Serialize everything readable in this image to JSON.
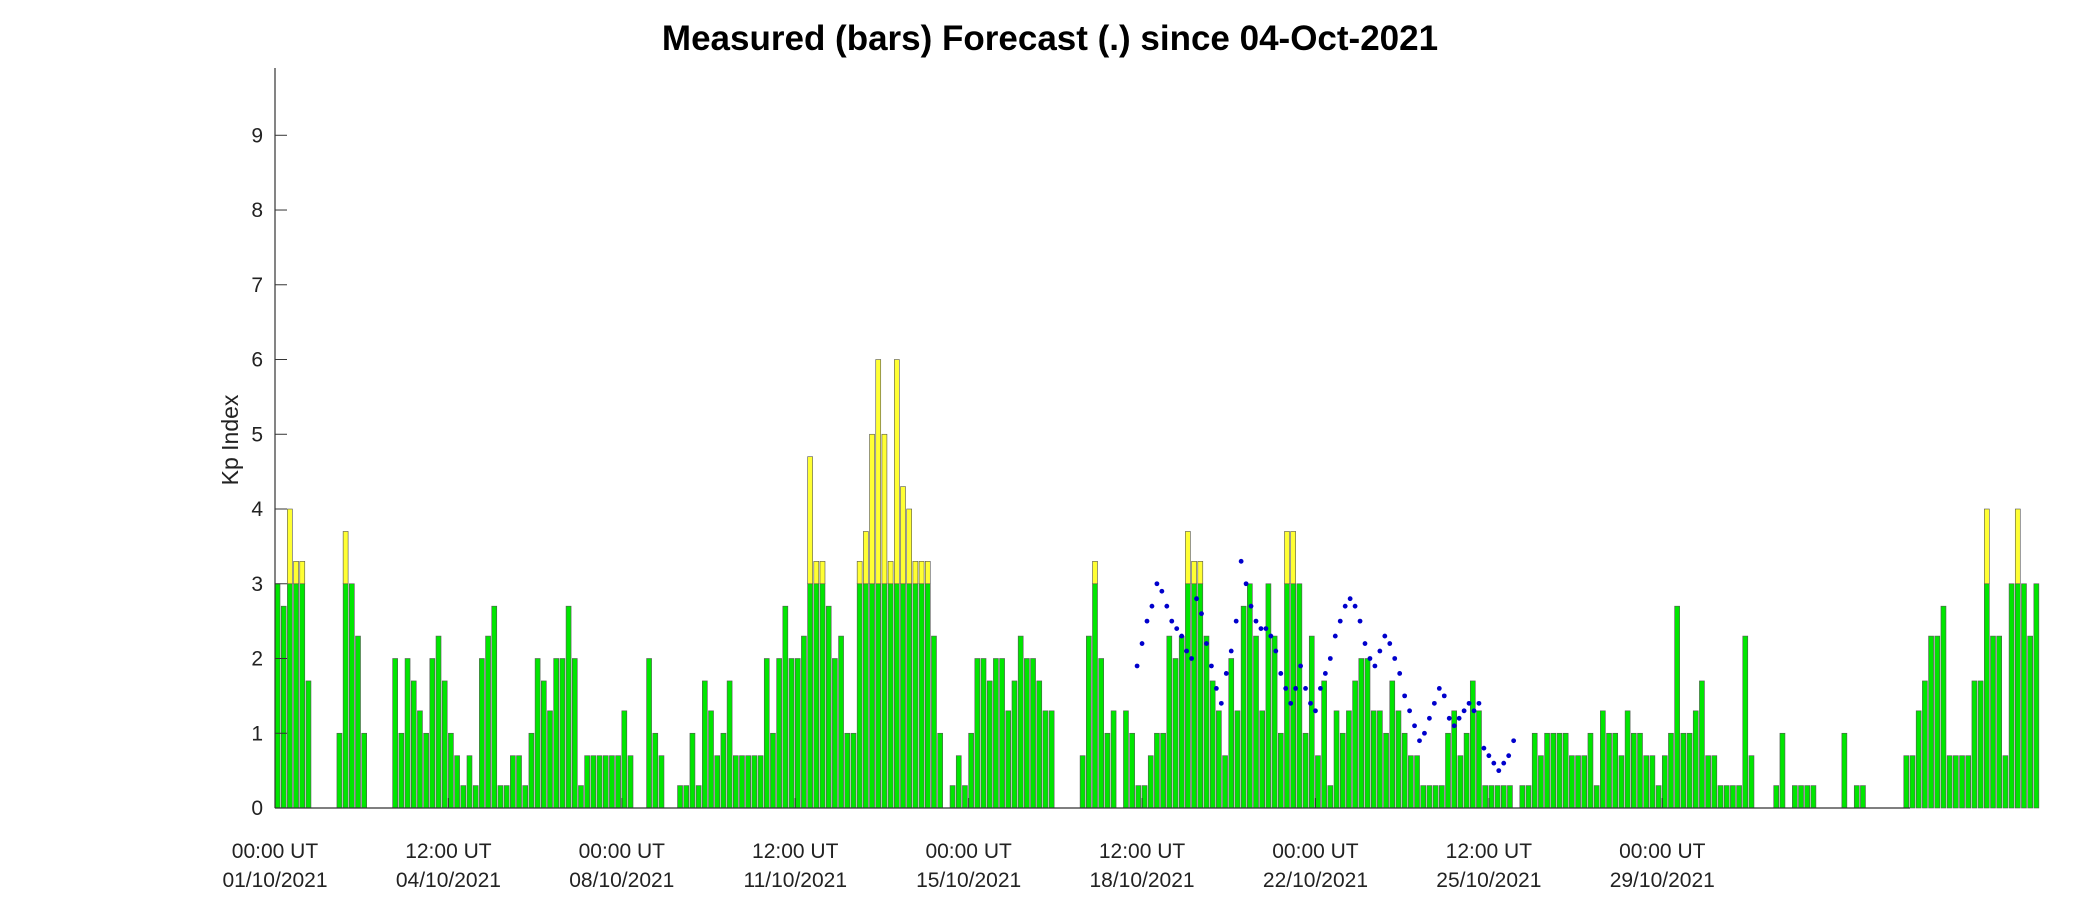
{
  "chart_data": {
    "type": "bar",
    "title": "Measured (bars) Forecast (.) since 04-Oct-2021",
    "ylabel": "Kp Index",
    "xlabel": "",
    "ylim": [
      0,
      9.9
    ],
    "yticks": [
      0,
      1,
      2,
      3,
      4,
      5,
      6,
      7,
      8,
      9
    ],
    "xticks": [
      {
        "line1": "00:00 UT",
        "line2": "01/10/2021"
      },
      {
        "line1": "12:00 UT",
        "line2": "04/10/2021"
      },
      {
        "line1": "00:00 UT",
        "line2": "08/10/2021"
      },
      {
        "line1": "12:00 UT",
        "line2": "11/10/2021"
      },
      {
        "line1": "00:00 UT",
        "line2": "15/10/2021"
      },
      {
        "line1": "12:00 UT",
        "line2": "18/10/2021"
      },
      {
        "line1": "00:00 UT",
        "line2": "22/10/2021"
      },
      {
        "line1": "12:00 UT",
        "line2": "25/10/2021"
      },
      {
        "line1": "00:00 UT",
        "line2": "29/10/2021"
      }
    ],
    "bar_interval_hours": 3,
    "threshold": 3,
    "colors": {
      "below_threshold": "#00e600",
      "above_threshold": "#ffff33",
      "forecast": "#0000cc",
      "bar_edge": "#555555"
    },
    "measured_kp": [
      3,
      2.7,
      4,
      3.3,
      3.3,
      1.7,
      0,
      0,
      0,
      0,
      1,
      3.7,
      3,
      2.3,
      1,
      0,
      0,
      0,
      0,
      2,
      1,
      2,
      1.7,
      1.3,
      1,
      2,
      2.3,
      1.7,
      1,
      0.7,
      0.3,
      0.7,
      0.3,
      2,
      2.3,
      2.7,
      0.3,
      0.3,
      0.7,
      0.7,
      0.3,
      1,
      2,
      1.7,
      1.3,
      2,
      2,
      2.7,
      2,
      0.3,
      0.7,
      0.7,
      0.7,
      0.7,
      0.7,
      0.7,
      1.3,
      0.7,
      0,
      0,
      2,
      1,
      0.7,
      0,
      0,
      0.3,
      0.3,
      1,
      0.3,
      1.7,
      1.3,
      0.7,
      1,
      1.7,
      0.7,
      0.7,
      0.7,
      0.7,
      0.7,
      2,
      1,
      2,
      2.7,
      2,
      2,
      2.3,
      4.7,
      3.3,
      3.3,
      2.7,
      2,
      2.3,
      1,
      1,
      3.3,
      3.7,
      5,
      6,
      5,
      3.3,
      6,
      4.3,
      4,
      3.3,
      3.3,
      3.3,
      2.3,
      1,
      0,
      0.3,
      0.7,
      0.3,
      1,
      2,
      2,
      1.7,
      2,
      2,
      1.3,
      1.7,
      2.3,
      2,
      2,
      1.7,
      1.3,
      1.3,
      0,
      0,
      0,
      0,
      0.7,
      2.3,
      3.3,
      2,
      1,
      1.3,
      0,
      1.3,
      1,
      0.3,
      0.3,
      0.7,
      1,
      1,
      2.3,
      2,
      2.3,
      3.7,
      3.3,
      3.3,
      2.3,
      1.7,
      1.3,
      0.7,
      2,
      1.3,
      2.7,
      3,
      2.3,
      1.3,
      3,
      2.3,
      1,
      3.7,
      3.7,
      3,
      1,
      2.3,
      0.7,
      1.7,
      0.3,
      1.3,
      1,
      1.3,
      1.7,
      2,
      2,
      1.3,
      1.3,
      1,
      1.7,
      1.3,
      1,
      0.7,
      0.7,
      0.3,
      0.3,
      0.3,
      0.3,
      1,
      1.3,
      0.7,
      1,
      1.7,
      1.3,
      0.3,
      0.3,
      0.3,
      0.3,
      0.3,
      0,
      0.3,
      0.3,
      1,
      0.7,
      1,
      1,
      1,
      1,
      0.7,
      0.7,
      0.7,
      1,
      0.3,
      1.3,
      1,
      1,
      0.7,
      1.3,
      1,
      1,
      0.7,
      0.7,
      0.3,
      0.7,
      1,
      2.7,
      1,
      1,
      1.3,
      1.7,
      0.7,
      0.7,
      0.3,
      0.3,
      0.3,
      0.3,
      2.3,
      0.7,
      0,
      0,
      0,
      0.3,
      1,
      0,
      0.3,
      0.3,
      0.3,
      0.3,
      0,
      0,
      0,
      0,
      1,
      0,
      0.3,
      0.3,
      0,
      0,
      0,
      0,
      0,
      0,
      0.7,
      0.7,
      1.3,
      1.7,
      2.3,
      2.3,
      2.7,
      0.7,
      0.7,
      0.7,
      0.7,
      1.7,
      1.7,
      4,
      2.3,
      2.3,
      0.7,
      3,
      4,
      3,
      2.3,
      3
    ],
    "forecast_kp": [
      [
        17.4,
        1.9
      ],
      [
        17.5,
        2.2
      ],
      [
        17.6,
        2.5
      ],
      [
        17.7,
        2.7
      ],
      [
        17.8,
        3.0
      ],
      [
        17.9,
        2.9
      ],
      [
        18.0,
        2.7
      ],
      [
        18.1,
        2.5
      ],
      [
        18.2,
        2.4
      ],
      [
        18.3,
        2.3
      ],
      [
        18.4,
        2.1
      ],
      [
        18.5,
        2.0
      ],
      [
        18.6,
        2.8
      ],
      [
        18.7,
        2.6
      ],
      [
        18.8,
        2.2
      ],
      [
        18.9,
        1.9
      ],
      [
        19.0,
        1.6
      ],
      [
        19.1,
        1.4
      ],
      [
        19.2,
        1.8
      ],
      [
        19.3,
        2.1
      ],
      [
        19.4,
        2.5
      ],
      [
        19.5,
        3.3
      ],
      [
        19.6,
        3.0
      ],
      [
        19.7,
        2.7
      ],
      [
        19.8,
        2.5
      ],
      [
        19.9,
        2.4
      ],
      [
        20.0,
        2.4
      ],
      [
        20.1,
        2.3
      ],
      [
        20.2,
        2.1
      ],
      [
        20.3,
        1.8
      ],
      [
        20.4,
        1.6
      ],
      [
        20.5,
        1.4
      ],
      [
        20.6,
        1.6
      ],
      [
        20.7,
        1.9
      ],
      [
        20.8,
        1.6
      ],
      [
        20.9,
        1.4
      ],
      [
        21.0,
        1.3
      ],
      [
        21.1,
        1.6
      ],
      [
        21.2,
        1.8
      ],
      [
        21.3,
        2.0
      ],
      [
        21.4,
        2.3
      ],
      [
        21.5,
        2.5
      ],
      [
        21.6,
        2.7
      ],
      [
        21.7,
        2.8
      ],
      [
        21.8,
        2.7
      ],
      [
        21.9,
        2.5
      ],
      [
        22.0,
        2.2
      ],
      [
        22.1,
        2.0
      ],
      [
        22.2,
        1.9
      ],
      [
        22.3,
        2.1
      ],
      [
        22.4,
        2.3
      ],
      [
        22.5,
        2.2
      ],
      [
        22.6,
        2.0
      ],
      [
        22.7,
        1.8
      ],
      [
        22.8,
        1.5
      ],
      [
        22.9,
        1.3
      ],
      [
        23.0,
        1.1
      ],
      [
        23.1,
        0.9
      ],
      [
        23.2,
        1.0
      ],
      [
        23.3,
        1.2
      ],
      [
        23.4,
        1.4
      ],
      [
        23.5,
        1.6
      ],
      [
        23.6,
        1.5
      ],
      [
        23.7,
        1.2
      ],
      [
        23.8,
        1.1
      ],
      [
        23.9,
        1.2
      ],
      [
        24.0,
        1.3
      ],
      [
        24.1,
        1.4
      ],
      [
        24.2,
        1.3
      ],
      [
        24.3,
        1.4
      ],
      [
        24.4,
        0.8
      ],
      [
        24.5,
        0.7
      ],
      [
        24.6,
        0.6
      ],
      [
        24.7,
        0.5
      ],
      [
        24.8,
        0.6
      ],
      [
        24.9,
        0.7
      ],
      [
        25.0,
        0.9
      ]
    ]
  }
}
